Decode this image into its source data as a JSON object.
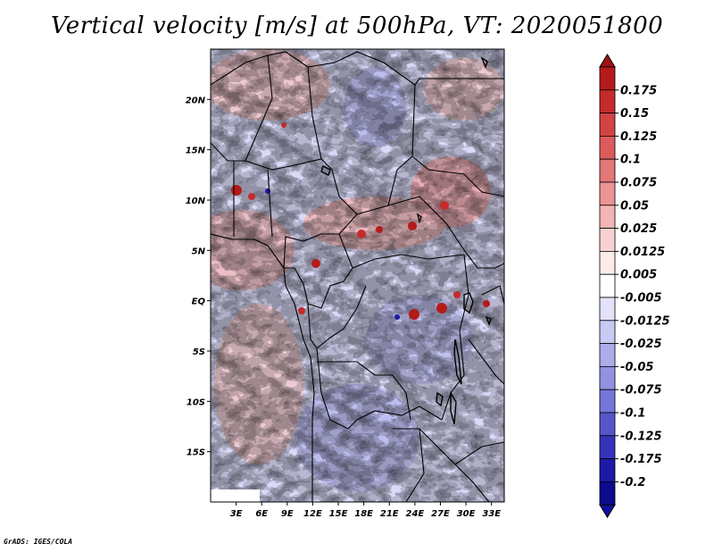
{
  "title": "Vertical velocity [m/s] at 500hPa, VT: 2020051800",
  "credit": "GrADS: IGES/COLA",
  "map": {
    "lon_range": [
      0,
      34.5
    ],
    "lat_range": [
      -20,
      25
    ],
    "x_ticks": [
      "3E",
      "6E",
      "9E",
      "12E",
      "15E",
      "18E",
      "21E",
      "24E",
      "27E",
      "30E",
      "33E"
    ],
    "x_tick_values": [
      3,
      6,
      9,
      12,
      15,
      18,
      21,
      24,
      27,
      30,
      33
    ],
    "y_ticks": [
      "20N",
      "15N",
      "10N",
      "5N",
      "EQ",
      "5S",
      "10S",
      "15S"
    ],
    "y_tick_values": [
      20,
      15,
      10,
      5,
      0,
      -5,
      -10,
      -15
    ]
  },
  "colorbar": {
    "labels": [
      "0.175",
      "0.15",
      "0.125",
      "0.1",
      "0.075",
      "0.05",
      "0.025",
      "0.0125",
      "0.005",
      "-0.005",
      "-0.0125",
      "-0.025",
      "-0.05",
      "-0.075",
      "-0.1",
      "-0.125",
      "-0.175",
      "-0.2"
    ],
    "colors": [
      "#b41a1a",
      "#c52b2b",
      "#d24444",
      "#dc5c5c",
      "#e47777",
      "#ec9494",
      "#f3b4b4",
      "#f8d2d2",
      "#fcebeb",
      "#ffffff",
      "#e2e2fa",
      "#c9c9f4",
      "#adadec",
      "#9292e3",
      "#7676da",
      "#5656cb",
      "#3434bb",
      "#1a1aa6",
      "#0b0b8c"
    ],
    "top_arrow_color": "#9e1313",
    "bottom_arrow_color": "#1010a0"
  }
}
